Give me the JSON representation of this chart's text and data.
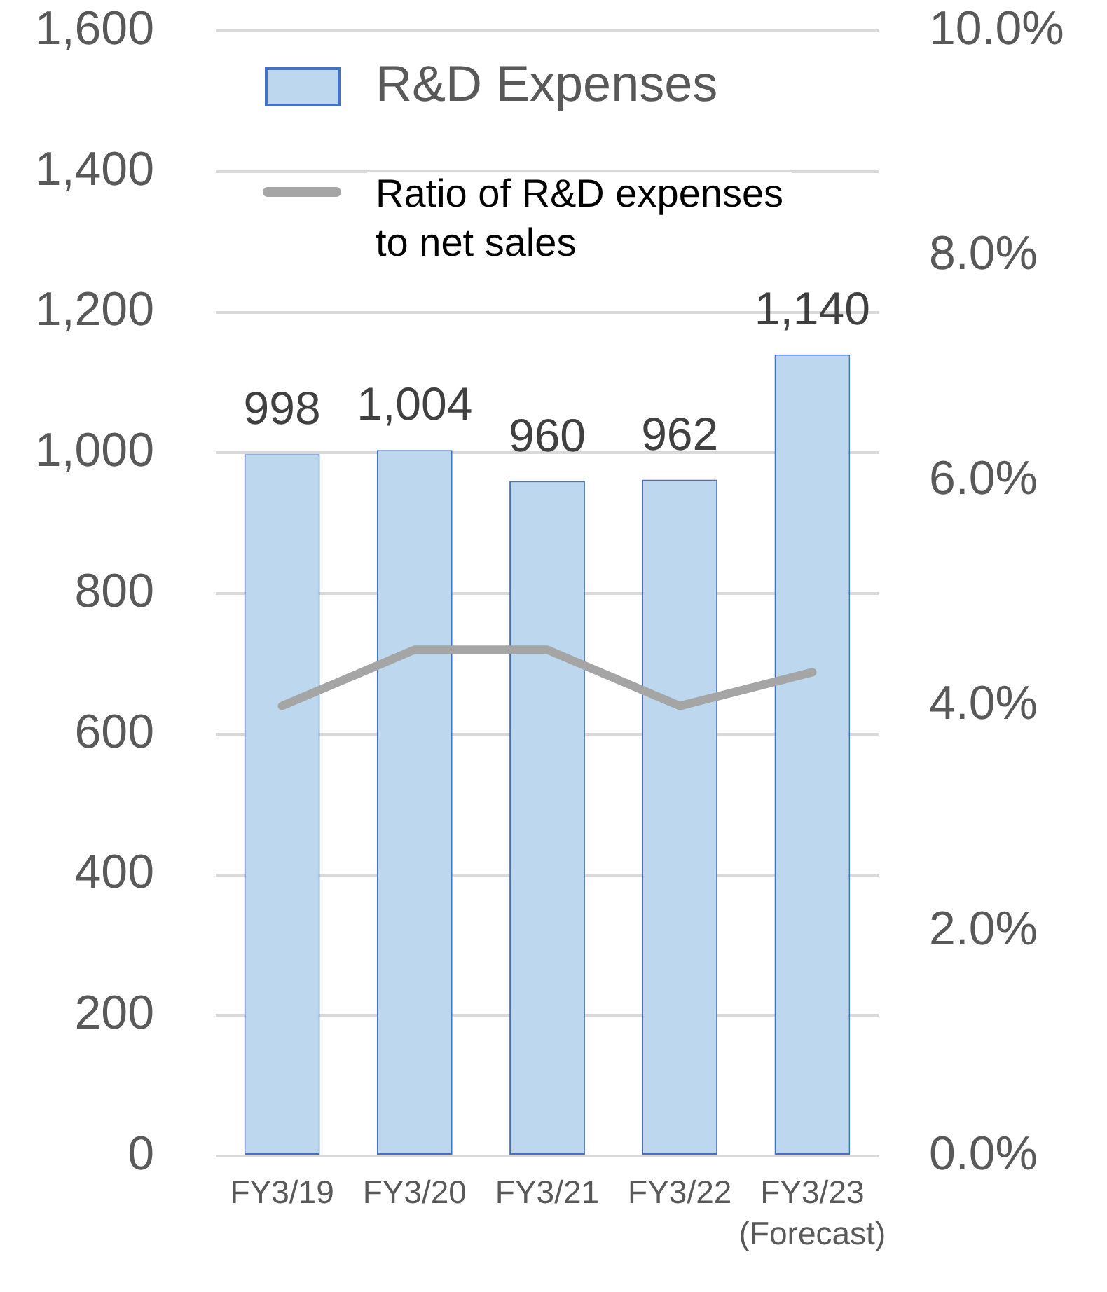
{
  "chart_data": {
    "type": "bar",
    "categories": [
      "FY3/19",
      "FY3/20",
      "FY3/21",
      "FY3/22",
      "FY3/23 (Forecast)"
    ],
    "series": [
      {
        "name": "R&D Expenses",
        "color": "#bdd7ee",
        "values": [
          998,
          1004,
          960,
          962,
          1140
        ],
        "value_labels": [
          "998",
          "1,004",
          "960",
          "962",
          "1,140"
        ]
      },
      {
        "name": "Ratio of R&D expenses to net sales",
        "type": "line",
        "axis": "y2",
        "color": "#a5a5a5",
        "values": [
          4.0,
          4.5,
          4.5,
          4.0,
          4.3
        ]
      }
    ],
    "ylim": [
      0,
      1600
    ],
    "yticks": [
      0,
      200,
      400,
      600,
      800,
      {
        "value": 1000,
        "label": "1,000"
      },
      {
        "value": 1200,
        "label": "1,200"
      },
      {
        "value": 1400,
        "label": "1,400"
      },
      {
        "value": 1600,
        "label": "1,600"
      }
    ],
    "y2lim": [
      0,
      10
    ],
    "y2ticks": [
      {
        "value": 0,
        "label": "0.0%"
      },
      {
        "value": 2,
        "label": "2.0%"
      },
      {
        "value": 4,
        "label": "4.0%"
      },
      {
        "value": 6,
        "label": "6.0%"
      },
      {
        "value": 8,
        "label": "8.0%"
      },
      {
        "value": 10,
        "label": "10.0%"
      }
    ],
    "grid": "y",
    "legend": "top left",
    "marker": "none"
  }
}
